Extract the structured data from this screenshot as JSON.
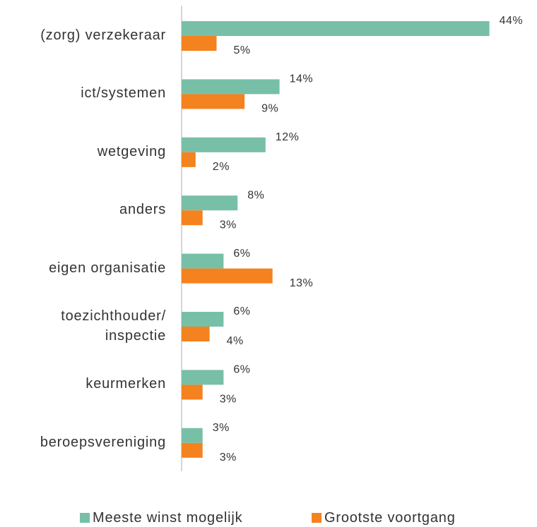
{
  "chart_data": {
    "type": "bar",
    "orientation": "horizontal",
    "categories": [
      "(zorg) verzekeraar",
      "ict/systemen",
      "wetgeving",
      "anders",
      "eigen organisatie",
      "toezichthouder/ inspectie",
      "keurmerken",
      "beroepsvereniging"
    ],
    "series": [
      {
        "name": "Meeste winst mogelijk",
        "color": "#78bfa8",
        "values": [
          44,
          14,
          12,
          8,
          6,
          6,
          6,
          3
        ],
        "value_labels": [
          "44%",
          "14%",
          "12%",
          "8%",
          "6%",
          "6%",
          "6%",
          "3%"
        ]
      },
      {
        "name": "Grootste voortgang",
        "color": "#f4821f",
        "values": [
          5,
          9,
          2,
          3,
          13,
          4,
          3,
          3
        ],
        "value_labels": [
          "5%",
          "9%",
          "2%",
          "3%",
          "13%",
          "4%",
          "3%",
          "3%"
        ]
      }
    ],
    "legend": "bottom"
  }
}
